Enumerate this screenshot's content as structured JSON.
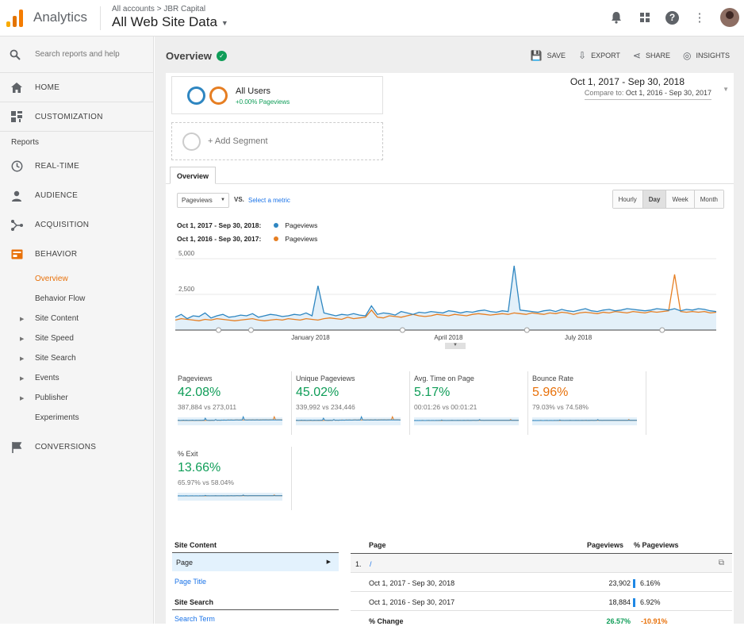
{
  "app": {
    "name": "Analytics",
    "breadcrumb": "All accounts > JBR Capital",
    "property": "All Web Site Data"
  },
  "sidebar": {
    "search_placeholder": "Search reports and help",
    "home": "HOME",
    "customization": "CUSTOMIZATION",
    "reports_label": "Reports",
    "realtime": "REAL-TIME",
    "audience": "AUDIENCE",
    "acquisition": "ACQUISITION",
    "behavior": "BEHAVIOR",
    "behavior_items": [
      "Overview",
      "Behavior Flow",
      "Site Content",
      "Site Speed",
      "Site Search",
      "Events",
      "Publisher",
      "Experiments"
    ],
    "conversions": "CONVERSIONS"
  },
  "header": {
    "title": "Overview",
    "save": "SAVE",
    "export": "EXPORT",
    "share": "SHARE",
    "insights": "INSIGHTS"
  },
  "segment": {
    "name": "All Users",
    "sub": "+0.00% Pageviews",
    "add": "+ Add Segment"
  },
  "date_range": {
    "main": "Oct 1, 2017 - Sep 30, 2018",
    "compare_label": "Compare to:",
    "compare": "Oct 1, 2016 - Sep 30, 2017"
  },
  "tab": "Overview",
  "controls": {
    "metric": "Pageviews",
    "vs": "VS.",
    "select_metric": "Select a metric",
    "granularity": [
      "Hourly",
      "Day",
      "Week",
      "Month"
    ]
  },
  "legend": [
    {
      "range": "Oct 1, 2017 - Sep 30, 2018:",
      "series": "Pageviews",
      "color": "#2e86c1"
    },
    {
      "range": "Oct 1, 2016 - Sep 30, 2017:",
      "series": "Pageviews",
      "color": "#e67e22"
    }
  ],
  "chart_data": {
    "type": "line",
    "ylim": [
      0,
      5000
    ],
    "yticks": [
      "5,000",
      "2,500"
    ],
    "xticks": [
      "January 2018",
      "April 2018",
      "July 2018"
    ],
    "series": [
      {
        "name": "Pageviews",
        "color": "#2e86c1",
        "values": [
          900,
          1100,
          800,
          1000,
          950,
          1200,
          850,
          1000,
          1100,
          900,
          950,
          1050,
          1000,
          1150,
          900,
          1000,
          1100,
          1050,
          950,
          1000,
          1100,
          1050,
          1200,
          1000,
          3100,
          1200,
          1100,
          1000,
          1100,
          1050,
          1150,
          1050,
          1000,
          1700,
          1100,
          1200,
          1150,
          1050,
          1300,
          1200,
          1100,
          1250,
          1200,
          1300,
          1250,
          1200,
          1350,
          1300,
          1200,
          1300,
          1250,
          1350,
          1400,
          1300,
          1250,
          1350,
          1300,
          4500,
          1400,
          1350,
          1300,
          1250,
          1350,
          1400,
          1300,
          1450,
          1350,
          1300,
          1400,
          1500,
          1350,
          1300,
          1400,
          1450,
          1350,
          1400,
          1500,
          1450,
          1400,
          1350,
          1400,
          1500,
          1450,
          1400,
          1500,
          1350,
          1450,
          1400,
          1500,
          1450,
          1350,
          1300
        ]
      },
      {
        "name": "Pageviews",
        "color": "#e67e22",
        "values": [
          700,
          800,
          750,
          700,
          650,
          750,
          700,
          800,
          750,
          700,
          650,
          700,
          750,
          800,
          700,
          650,
          700,
          750,
          700,
          800,
          750,
          700,
          800,
          750,
          700,
          800,
          850,
          800,
          750,
          900,
          800,
          850,
          900,
          1400,
          900,
          850,
          1000,
          950,
          900,
          1000,
          1100,
          1000,
          950,
          1000,
          1100,
          1050,
          1000,
          1100,
          1050,
          1000,
          1100,
          1150,
          1100,
          1050,
          1100,
          1150,
          1100,
          1200,
          1150,
          1100,
          1200,
          1150,
          1100,
          1200,
          1150,
          1250,
          1200,
          1100,
          1200,
          1250,
          1200,
          1150,
          1250,
          1200,
          1300,
          1250,
          1200,
          1300,
          1250,
          1200,
          1300,
          1250,
          1300,
          1350,
          3900,
          1300,
          1250,
          1300,
          1250,
          1300,
          1200,
          1250
        ]
      }
    ]
  },
  "metrics": [
    {
      "label": "Pageviews",
      "value": "42.08%",
      "compare": "387,884 vs 273,011",
      "tone": "green"
    },
    {
      "label": "Unique Pageviews",
      "value": "45.02%",
      "compare": "339,992 vs 234,446",
      "tone": "green"
    },
    {
      "label": "Avg. Time on Page",
      "value": "5.17%",
      "compare": "00:01:26 vs 00:01:21",
      "tone": "green"
    },
    {
      "label": "Bounce Rate",
      "value": "5.96%",
      "compare": "79.03% vs 74.58%",
      "tone": "orange"
    },
    {
      "label": "% Exit",
      "value": "13.66%",
      "compare": "65.97% vs 58.04%",
      "tone": "green"
    }
  ],
  "left_table": {
    "site_content": "Site Content",
    "page": "Page",
    "page_title": "Page Title",
    "site_search": "Site Search",
    "search_term": "Search Term"
  },
  "right_table": {
    "headers": [
      "Page",
      "Pageviews",
      "% Pageviews"
    ],
    "row_index": "1.",
    "row_page": "/",
    "rows": [
      {
        "label": "Oct 1, 2017 - Sep 30, 2018",
        "pageviews": "23,902",
        "pct": "6.16%"
      },
      {
        "label": "Oct 1, 2016 - Sep 30, 2017",
        "pageviews": "18,884",
        "pct": "6.92%"
      },
      {
        "label": "% Change",
        "pageviews": "26.57%",
        "pct": "-10.91%"
      }
    ]
  }
}
